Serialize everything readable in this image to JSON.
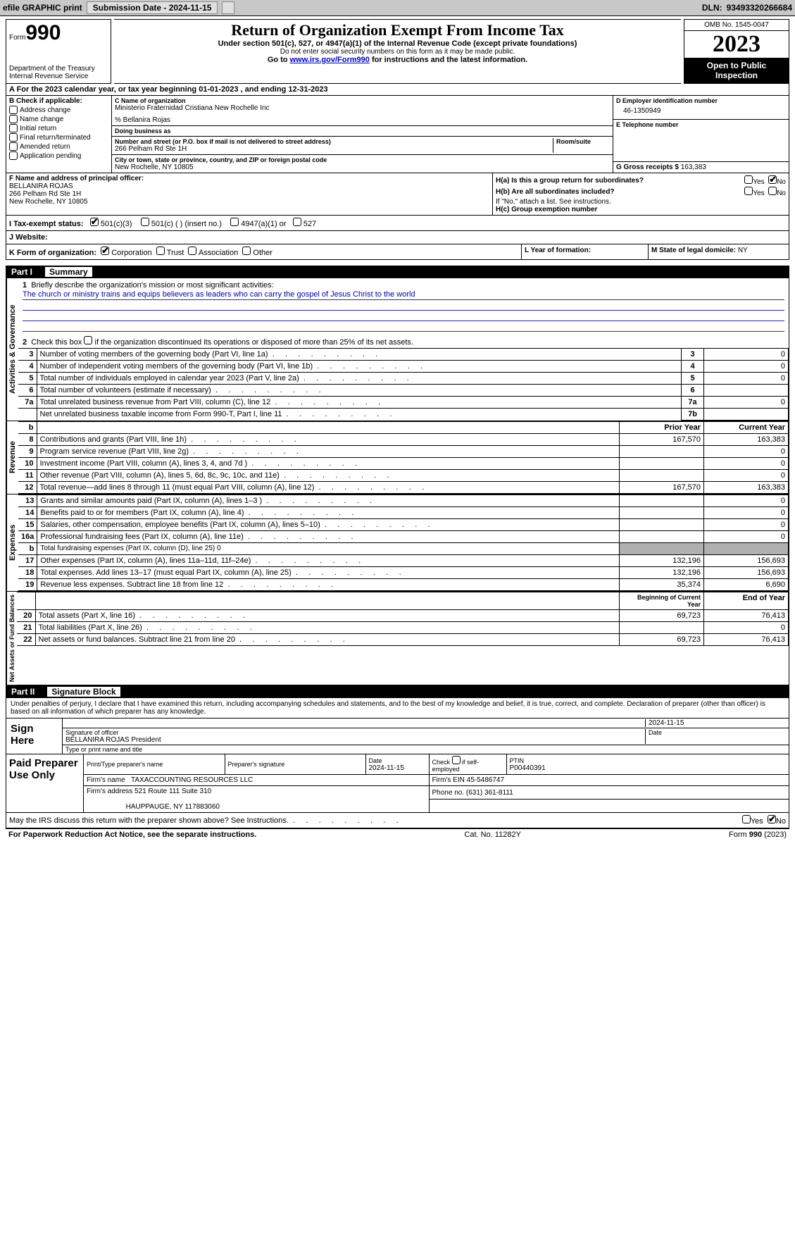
{
  "toolbar": {
    "efile": "efile GRAPHIC print",
    "submission": "Submission Date - 2024-11-15",
    "dln_label": "DLN:",
    "dln": "93493320266684"
  },
  "header": {
    "form_label": "Form",
    "form_no": "990",
    "title": "Return of Organization Exempt From Income Tax",
    "subtitle": "Under section 501(c), 527, or 4947(a)(1) of the Internal Revenue Code (except private foundations)",
    "note1": "Do not enter social security numbers on this form as it may be made public.",
    "note2_pre": "Go to ",
    "note2_link": "www.irs.gov/Form990",
    "note2_post": " for instructions and the latest information.",
    "dept": "Department of the Treasury",
    "irs": "Internal Revenue Service",
    "omb": "OMB No. 1545-0047",
    "year": "2023",
    "open": "Open to Public Inspection"
  },
  "row_a": "A  For the 2023 calendar year, or tax year beginning 01-01-2023    , and ending 12-31-2023",
  "box_b": {
    "label": "B Check if applicable:",
    "items": [
      "Address change",
      "Name change",
      "Initial return",
      "Final return/terminated",
      "Amended return",
      "Application pending"
    ]
  },
  "box_c": {
    "name_lbl": "C Name of organization",
    "name": "Ministerio Fraternidad Cristiana New Rochelle Inc",
    "care_of": "% Bellanira Rojas",
    "dba_lbl": "Doing business as",
    "dba": "",
    "addr_lbl": "Number and street (or P.O. box if mail is not delivered to street address)",
    "addr": "266 Pelham Rd Ste 1H",
    "room_lbl": "Room/suite",
    "room": "",
    "city_lbl": "City or town, state or province, country, and ZIP or foreign postal code",
    "city": "New Rochelle, NY  10805"
  },
  "box_d": {
    "ein_lbl": "D Employer identification number",
    "ein": "46-1350949",
    "tel_lbl": "E Telephone number",
    "tel": "",
    "gross_lbl": "G Gross receipts $",
    "gross": "163,383"
  },
  "box_f": {
    "lbl": "F  Name and address of principal officer:",
    "name": "BELLANIRA ROJAS",
    "addr1": "266 Pelham Rd Ste 1H",
    "addr2": "New Rochelle, NY  10805"
  },
  "box_h": {
    "ha_lbl": "H(a)  Is this a group return for subordinates?",
    "hb_lbl": "H(b)  Are all subordinates included?",
    "hb_note": "If \"No,\" attach a list. See instructions.",
    "hc_lbl": "H(c)  Group exemption number",
    "yes": "Yes",
    "no": "No"
  },
  "tax_status": {
    "lbl": "I   Tax-exempt status:",
    "o1": "501(c)(3)",
    "o2": "501(c) (  ) (insert no.)",
    "o3": "4947(a)(1) or",
    "o4": "527"
  },
  "website": {
    "lbl": "J   Website:",
    "val": ""
  },
  "korg": {
    "lbl": "K Form of organization:",
    "o1": "Corporation",
    "o2": "Trust",
    "o3": "Association",
    "o4": "Other",
    "l_lbl": "L Year of formation:",
    "l_val": "",
    "m_lbl": "M State of legal domicile:",
    "m_val": "NY"
  },
  "part1": {
    "bar_n": "Part I",
    "bar_t": "Summary",
    "q1_lbl": "Briefly describe the organization's mission or most significant activities:",
    "q1_val": "The church or ministry trains and equips believers as leaders who can carry the gospel of Jesus Christ to the world",
    "q2_lbl": "Check this box       if the organization discontinued its operations or disposed of more than 25% of its net assets.",
    "rows_gov": [
      {
        "n": "3",
        "lab": "Number of voting members of the governing body (Part VI, line 1a)",
        "box": "3",
        "val": "0"
      },
      {
        "n": "4",
        "lab": "Number of independent voting members of the governing body (Part VI, line 1b)",
        "box": "4",
        "val": "0"
      },
      {
        "n": "5",
        "lab": "Total number of individuals employed in calendar year 2023 (Part V, line 2a)",
        "box": "5",
        "val": "0"
      },
      {
        "n": "6",
        "lab": "Total number of volunteers (estimate if necessary)",
        "box": "6",
        "val": ""
      },
      {
        "n": "7a",
        "lab": "Total unrelated business revenue from Part VIII, column (C), line 12",
        "box": "7a",
        "val": "0"
      },
      {
        "n": "",
        "lab": "Net unrelated business taxable income from Form 990-T, Part I, line 11",
        "box": "7b",
        "val": ""
      }
    ],
    "col_prior": "Prior Year",
    "col_current": "Current Year",
    "rows_rev": [
      {
        "n": "8",
        "lab": "Contributions and grants (Part VIII, line 1h)",
        "p": "167,570",
        "c": "163,383"
      },
      {
        "n": "9",
        "lab": "Program service revenue (Part VIII, line 2g)",
        "p": "",
        "c": "0"
      },
      {
        "n": "10",
        "lab": "Investment income (Part VIII, column (A), lines 3, 4, and 7d )",
        "p": "",
        "c": "0"
      },
      {
        "n": "11",
        "lab": "Other revenue (Part VIII, column (A), lines 5, 6d, 8c, 9c, 10c, and 11e)",
        "p": "",
        "c": "0"
      },
      {
        "n": "12",
        "lab": "Total revenue—add lines 8 through 11 (must equal Part VIII, column (A), line 12)",
        "p": "167,570",
        "c": "163,383"
      }
    ],
    "rows_exp": [
      {
        "n": "13",
        "lab": "Grants and similar amounts paid (Part IX, column (A), lines 1–3 )",
        "p": "",
        "c": "0"
      },
      {
        "n": "14",
        "lab": "Benefits paid to or for members (Part IX, column (A), line 4)",
        "p": "",
        "c": "0"
      },
      {
        "n": "15",
        "lab": "Salaries, other compensation, employee benefits (Part IX, column (A), lines 5–10)",
        "p": "",
        "c": "0"
      },
      {
        "n": "16a",
        "lab": "Professional fundraising fees (Part IX, column (A), line 11e)",
        "p": "",
        "c": "0"
      },
      {
        "n": "b",
        "lab": "Total fundraising expenses (Part IX, column (D), line 25) 0",
        "p": "__shade__",
        "c": "__shade__"
      },
      {
        "n": "17",
        "lab": "Other expenses (Part IX, column (A), lines 11a–11d, 11f–24e)",
        "p": "132,196",
        "c": "156,693"
      },
      {
        "n": "18",
        "lab": "Total expenses. Add lines 13–17 (must equal Part IX, column (A), line 25)",
        "p": "132,196",
        "c": "156,693"
      },
      {
        "n": "19",
        "lab": "Revenue less expenses. Subtract line 18 from line 12",
        "p": "35,374",
        "c": "6,690"
      }
    ],
    "col_begin": "Beginning of Current Year",
    "col_end": "End of Year",
    "rows_net": [
      {
        "n": "20",
        "lab": "Total assets (Part X, line 16)",
        "p": "69,723",
        "c": "76,413"
      },
      {
        "n": "21",
        "lab": "Total liabilities (Part X, line 26)",
        "p": "",
        "c": "0"
      },
      {
        "n": "22",
        "lab": "Net assets or fund balances. Subtract line 21 from line 20",
        "p": "69,723",
        "c": "76,413"
      }
    ],
    "vtab_gov": "Activities & Governance",
    "vtab_rev": "Revenue",
    "vtab_exp": "Expenses",
    "vtab_net": "Net Assets or Fund Balances"
  },
  "part2": {
    "bar_n": "Part II",
    "bar_t": "Signature Block",
    "decl": "Under penalties of perjury, I declare that I have examined this return, including accompanying schedules and statements, and to the best of my knowledge and belief, it is true, correct, and complete. Declaration of preparer (other than officer) is based on all information of which preparer has any knowledge.",
    "sign_here": "Sign Here",
    "sig_of_officer": "Signature of officer",
    "officer": "BELLANIRA ROJAS  President",
    "type_name": "Type or print name and title",
    "date_lbl": "Date",
    "date_val": "2024-11-15",
    "paid_here": "Paid Preparer Use Only",
    "prep_name_lbl": "Print/Type preparer's name",
    "prep_name": "",
    "prep_sig_lbl": "Preparer's signature",
    "prep_date_lbl": "Date",
    "prep_date": "2024-11-15",
    "check_self": "Check        if self-employed",
    "ptin_lbl": "PTIN",
    "ptin": "P00440391",
    "firm_name_lbl": "Firm's name",
    "firm_name": "TAXACCOUNTING RESOURCES LLC",
    "firm_ein_lbl": "Firm's EIN",
    "firm_ein": "45-5486747",
    "firm_addr_lbl": "Firm's address",
    "firm_addr1": "521 Route 111 Suite 310",
    "firm_addr2": "HAUPPAUGE, NY  117883060",
    "phone_lbl": "Phone no.",
    "phone": "(631) 361-8111",
    "may_irs": "May the IRS discuss this return with the preparer shown above? See Instructions.",
    "yes": "Yes",
    "no": "No"
  },
  "footer": {
    "left": "For Paperwork Reduction Act Notice, see the separate instructions.",
    "mid": "Cat. No. 11282Y",
    "right": "Form 990 (2023)"
  }
}
